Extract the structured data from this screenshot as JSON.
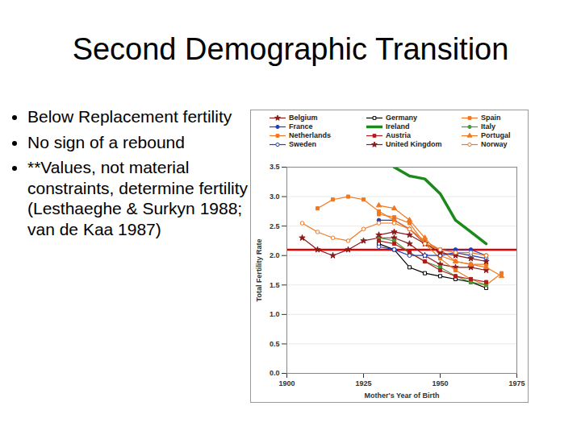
{
  "slide": {
    "title": "Second Demographic Transition",
    "bullets": [
      "Below Replacement fertility",
      "No sign of a rebound",
      "**Values, not material constraints, determine fertility (Lesthaeghe & Surkyn 1988; van de Kaa 1987)"
    ]
  },
  "chart_data": {
    "type": "line",
    "xlabel": "Mother's Year of Birth",
    "ylabel": "Total Fertility Rate",
    "x": [
      1905,
      1910,
      1915,
      1920,
      1925,
      1930,
      1935,
      1940,
      1945,
      1950,
      1955,
      1960,
      1965,
      1970
    ],
    "xlim": [
      1900,
      1975
    ],
    "xticks": [
      1900,
      1925,
      1950,
      1975
    ],
    "ylim": [
      0,
      3.5
    ],
    "yticks": [
      {
        "value": 0,
        "label": "0.0"
      },
      {
        "value": 0.5,
        "label": "0.5"
      },
      {
        "value": 1,
        "label": "1.0"
      },
      {
        "value": 1.5,
        "label": "1.5"
      },
      {
        "value": 2,
        "label": "2.0"
      },
      {
        "value": 2.5,
        "label": "2.5"
      },
      {
        "value": 3,
        "label": "3.0"
      },
      {
        "value": 3.5,
        "label": "3.5"
      }
    ],
    "grid": true,
    "legend": "top",
    "hline": {
      "value": 2.1,
      "color": "#e00000"
    },
    "series": [
      {
        "name": "Belgium",
        "color": "#8b1a1a",
        "marker": "star",
        "line_style": "solid",
        "values": [
          2.3,
          2.1,
          2.0,
          2.1,
          2.25,
          2.3,
          2.3,
          2.2,
          2.0,
          1.85,
          1.8,
          1.8,
          1.75,
          null
        ]
      },
      {
        "name": "Germany",
        "color": "#000000",
        "marker": "open-square",
        "line_style": "solid",
        "values": [
          null,
          null,
          null,
          null,
          null,
          2.2,
          2.1,
          1.8,
          1.7,
          1.65,
          1.6,
          1.55,
          1.45,
          null
        ]
      },
      {
        "name": "Spain",
        "color": "#f07820",
        "marker": "square",
        "line_style": "solid",
        "values": [
          null,
          null,
          null,
          null,
          null,
          2.7,
          2.65,
          2.55,
          2.2,
          1.95,
          1.75,
          1.6,
          1.5,
          1.7
        ]
      },
      {
        "name": "France",
        "color": "#1f3fbf",
        "marker": "circle",
        "line_style": "solid",
        "values": [
          null,
          null,
          null,
          null,
          null,
          2.6,
          2.6,
          2.45,
          2.2,
          2.1,
          2.1,
          2.1,
          2.0,
          null
        ]
      },
      {
        "name": "Ireland",
        "color": "#1a8a1a",
        "marker": "none",
        "line_style": "thick",
        "values": [
          null,
          null,
          null,
          null,
          null,
          null,
          3.5,
          3.35,
          3.3,
          3.05,
          2.6,
          2.4,
          2.2,
          null
        ]
      },
      {
        "name": "Italy",
        "color": "#4a9a3a",
        "marker": "circle",
        "line_style": "solid",
        "values": [
          null,
          null,
          null,
          null,
          null,
          2.3,
          2.25,
          2.05,
          1.9,
          1.8,
          1.65,
          1.55,
          1.5,
          null
        ]
      },
      {
        "name": "Netherlands",
        "color": "#f07820",
        "marker": "square",
        "line_style": "solid",
        "values": [
          null,
          2.8,
          2.95,
          3.0,
          2.95,
          2.75,
          2.6,
          2.45,
          2.25,
          2.1,
          1.9,
          1.85,
          1.85,
          null
        ]
      },
      {
        "name": "Austria",
        "color": "#b01c1c",
        "marker": "square",
        "line_style": "solid",
        "values": [
          null,
          null,
          null,
          null,
          null,
          2.25,
          2.2,
          2.05,
          1.9,
          1.75,
          1.65,
          1.6,
          1.55,
          null
        ]
      },
      {
        "name": "Portugal",
        "color": "#f07820",
        "marker": "triangle",
        "line_style": "solid",
        "values": [
          null,
          null,
          null,
          null,
          null,
          2.85,
          2.8,
          2.6,
          2.3,
          2.0,
          1.9,
          1.85,
          1.8,
          1.65
        ]
      },
      {
        "name": "Sweden",
        "color": "#1f3fbf",
        "marker": "open-circle",
        "line_style": "solid",
        "values": [
          null,
          null,
          null,
          null,
          null,
          2.15,
          2.1,
          2.0,
          2.0,
          2.0,
          2.05,
          2.0,
          1.95,
          null
        ]
      },
      {
        "name": "United Kingdom",
        "color": "#8b1a1a",
        "marker": "star",
        "line_style": "solid",
        "values": [
          null,
          null,
          null,
          null,
          null,
          2.35,
          2.4,
          2.35,
          2.2,
          2.05,
          2.0,
          1.95,
          1.9,
          null
        ]
      },
      {
        "name": "Norway",
        "color": "#f07820",
        "marker": "open-circle",
        "line_style": "solid",
        "values": [
          2.55,
          2.4,
          2.3,
          2.25,
          2.45,
          2.55,
          2.55,
          2.45,
          2.2,
          2.1,
          2.05,
          2.05,
          2.0,
          null
        ]
      }
    ]
  }
}
